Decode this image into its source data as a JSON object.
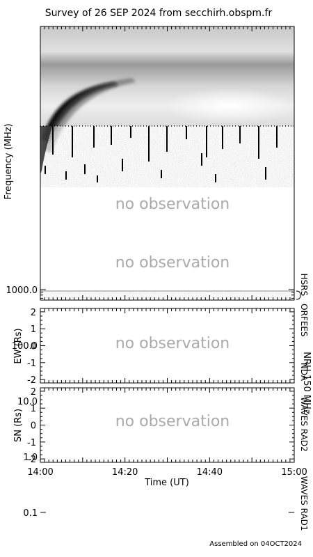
{
  "title": "Survey of 26 SEP 2024 from secchirh.obspm.fr",
  "footer": "Assembled on 04OCT2024",
  "no_obs_text": "no observation",
  "chart_data": [
    {
      "type": "heatmap",
      "name": "spectrogram",
      "ylabel": "Frequency (MHz)",
      "y_scale": "log",
      "y_inverted": true,
      "ylim": [
        0.02,
        1500
      ],
      "y_ticks": [
        {
          "value": 0.1,
          "label": "0.1"
        },
        {
          "value": 1.0,
          "label": "1.0"
        },
        {
          "value": 10.0,
          "label": "10.0"
        },
        {
          "value": 100.0,
          "label": "100.0"
        },
        {
          "value": 1000.0,
          "label": "1000.0"
        }
      ],
      "bands": [
        {
          "label": "WAVES RAD1",
          "range_mhz": [
            0.02,
            1.05
          ],
          "observed": true
        },
        {
          "label": "WAVES RAD2",
          "range_mhz": [
            1.05,
            14
          ],
          "observed": true
        },
        {
          "label": "NDA",
          "range_mhz": [
            14,
            80
          ],
          "observed": false
        },
        {
          "label": "ORFEES",
          "range_mhz": [
            80,
            1000
          ],
          "observed": false
        },
        {
          "label": "HSRS",
          "range_mhz": [
            1000,
            1500
          ],
          "observed": true
        }
      ]
    },
    {
      "type": "line",
      "name": "nrh-ew",
      "ylabel": "EW (Rs)",
      "ylim": [
        -2.2,
        2.2
      ],
      "y_ticks": [
        2,
        1,
        0,
        -1,
        -2
      ],
      "observed": false
    },
    {
      "type": "line",
      "name": "nrh-sn",
      "ylabel": "SN (Rs)",
      "ylim": [
        -2.2,
        2.2
      ],
      "y_ticks": [
        2,
        1,
        0,
        -1,
        -2
      ],
      "observed": false
    }
  ],
  "nrh_label": "NRH 150 MHz",
  "x_axis": {
    "label": "Time (UT)",
    "ticks": [
      "14:00",
      "14:20",
      "14:40",
      "15:00"
    ]
  }
}
